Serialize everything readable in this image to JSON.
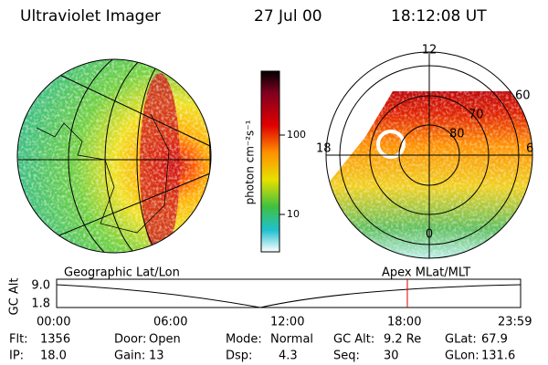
{
  "header": {
    "title": "Ultraviolet Imager",
    "date": "27 Jul 00",
    "time": "18:12:08 UT"
  },
  "colorbar": {
    "label": "photon cm⁻²s⁻¹",
    "ticks": [
      "100",
      "10"
    ]
  },
  "left_panel": {
    "label": "Geographic Lat/Lon"
  },
  "right_panel": {
    "label": "Apex MLat/MLT",
    "mlt_labels": [
      "12",
      "18",
      "6",
      "0"
    ],
    "lat_labels": [
      "60",
      "70",
      "80"
    ]
  },
  "timeline": {
    "ylabel": "GC Alt",
    "yticks": [
      "9.0",
      "1.8"
    ],
    "xticks": [
      "00:00",
      "06:00",
      "12:00",
      "18:00",
      "23:59"
    ]
  },
  "info": [
    [
      {
        "label": "Flt:",
        "value": "1356"
      },
      {
        "label": "Door:",
        "value": "Open"
      },
      {
        "label": "Mode:",
        "value": "Normal"
      },
      {
        "label": "GC Alt:",
        "value": "9.2 Re"
      },
      {
        "label": "GLat:",
        "value": "67.9"
      }
    ],
    [
      {
        "label": "IP:",
        "value": "18.0"
      },
      {
        "label": "Gain:",
        "value": "13"
      },
      {
        "label": "Dsp:",
        "value": "4.3"
      },
      {
        "label": "Seq:",
        "value": "30"
      },
      {
        "label": "GLon:",
        "value": "131.6"
      }
    ]
  ]
}
